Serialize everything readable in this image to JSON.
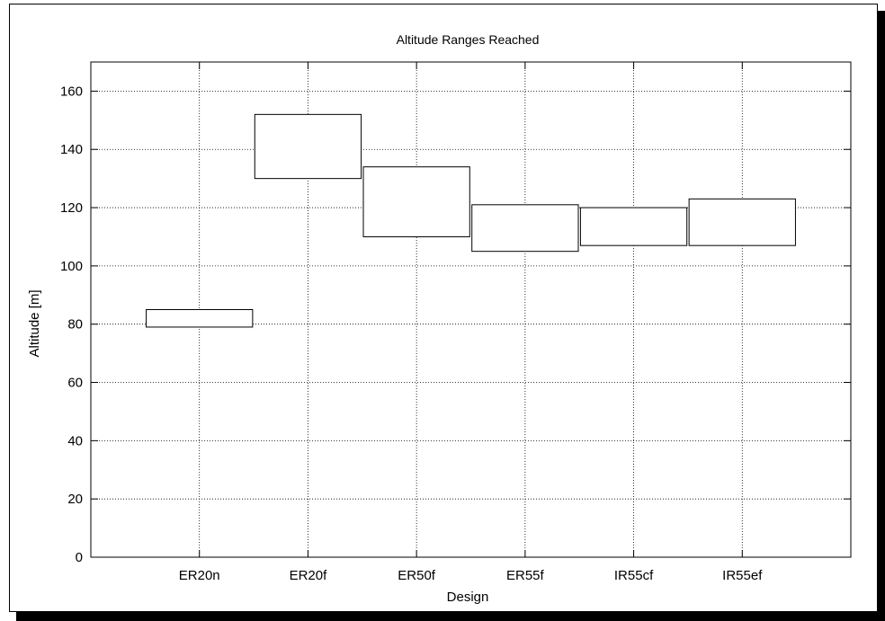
{
  "chart_data": {
    "type": "floating-bar",
    "title": "Altitude Ranges Reached",
    "xlabel": "Design",
    "ylabel": "Altitude [m]",
    "categories": [
      "ER20n",
      "ER20f",
      "ER50f",
      "ER55f",
      "IR55cf",
      "IR55ef"
    ],
    "ranges": [
      {
        "low": 79,
        "high": 85
      },
      {
        "low": 130,
        "high": 152
      },
      {
        "low": 110,
        "high": 134
      },
      {
        "low": 105,
        "high": 121
      },
      {
        "low": 107,
        "high": 120
      },
      {
        "low": 107,
        "high": 123
      }
    ],
    "ylim": [
      0,
      170
    ],
    "yticks": [
      0,
      20,
      40,
      60,
      80,
      100,
      120,
      140,
      160
    ],
    "grid": true,
    "colors": {
      "line": "#000000",
      "grid": "#000000",
      "background": "#ffffff"
    }
  }
}
